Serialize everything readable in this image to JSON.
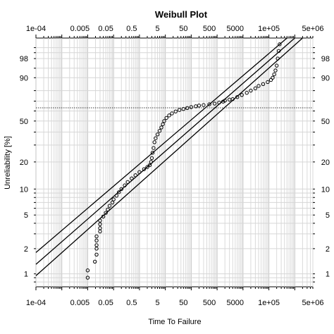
{
  "chart_data": {
    "type": "scatter",
    "title": "Weibull Plot",
    "xlabel": "Time To Failure",
    "ylabel": "Unreliability [%]",
    "x_scale": "log10",
    "y_scale": "weibull",
    "xlim": [
      0.0001,
      5000000
    ],
    "ylim": [
      0.7,
      99.9
    ],
    "grid": true,
    "x_tick_labels": [
      {
        "value": 0.0001,
        "label": "1e-04"
      },
      {
        "value": 0.005,
        "label": "0.005"
      },
      {
        "value": 0.05,
        "label": "0.05"
      },
      {
        "value": 0.5,
        "label": "0.5"
      },
      {
        "value": 5,
        "label": "5"
      },
      {
        "value": 50,
        "label": "50"
      },
      {
        "value": 500,
        "label": "500"
      },
      {
        "value": 5000,
        "label": "5000"
      },
      {
        "value": 100000,
        "label": "1e+05"
      },
      {
        "value": 5000000,
        "label": "5e+06"
      }
    ],
    "y_tick_labels": [
      {
        "value": 1,
        "label": "1"
      },
      {
        "value": 2,
        "label": "2"
      },
      {
        "value": 5,
        "label": "5"
      },
      {
        "value": 10,
        "label": "10"
      },
      {
        "value": 20,
        "label": "20"
      },
      {
        "value": 50,
        "label": "50"
      },
      {
        "value": 90,
        "label": "90"
      },
      {
        "value": 98,
        "label": "98"
      }
    ],
    "reference_line_y": 63.2,
    "fit_lines": [
      {
        "points": [
          [
            0.0001,
            0.95
          ],
          [
            2000000,
            99.9
          ]
        ]
      },
      {
        "points": [
          [
            0.0001,
            1.3
          ],
          [
            1000000,
            99.9
          ]
        ]
      },
      {
        "points": [
          [
            0.0001,
            1.8
          ],
          [
            500000,
            99.9
          ]
        ]
      }
    ],
    "series": [
      {
        "style": "open-circles",
        "points": [
          [
            0.01,
            0.9
          ],
          [
            0.01,
            1.1
          ],
          [
            0.019,
            1.4
          ],
          [
            0.022,
            1.7
          ],
          [
            0.022,
            2.0
          ],
          [
            0.022,
            2.2
          ],
          [
            0.022,
            2.5
          ],
          [
            0.022,
            2.8
          ],
          [
            0.03,
            3.2
          ],
          [
            0.03,
            3.5
          ],
          [
            0.03,
            3.9
          ],
          [
            0.03,
            4.3
          ],
          [
            0.04,
            4.8
          ],
          [
            0.05,
            5.3
          ],
          [
            0.06,
            5.8
          ],
          [
            0.07,
            6.4
          ],
          [
            0.09,
            7.0
          ],
          [
            0.1,
            7.6
          ],
          [
            0.13,
            8.4
          ],
          [
            0.16,
            9.2
          ],
          [
            0.2,
            10.0
          ],
          [
            0.27,
            11.0
          ],
          [
            0.35,
            12.0
          ],
          [
            0.5,
            13.2
          ],
          [
            0.7,
            14.3
          ],
          [
            1.0,
            15.5
          ],
          [
            1.5,
            16.7
          ],
          [
            2.0,
            17.6
          ],
          [
            2.5,
            18.5
          ],
          [
            2.8,
            20.0
          ],
          [
            3.0,
            22.0
          ],
          [
            3.2,
            25.0
          ],
          [
            3.5,
            28.0
          ],
          [
            3.8,
            32.0
          ],
          [
            4.2,
            35.0
          ],
          [
            5.0,
            38.0
          ],
          [
            6.0,
            41.0
          ],
          [
            7.0,
            44.0
          ],
          [
            8.0,
            47.0
          ],
          [
            9.0,
            50.0
          ],
          [
            11.0,
            53.0
          ],
          [
            14.0,
            55.5
          ],
          [
            18.0,
            57.5
          ],
          [
            25.0,
            59.5
          ],
          [
            35.0,
            61.0
          ],
          [
            50.0,
            62.0
          ],
          [
            70.0,
            63.0
          ],
          [
            100.0,
            64.0
          ],
          [
            150.0,
            64.8
          ],
          [
            200.0,
            65.5
          ],
          [
            300.0,
            66.0
          ],
          [
            500.0,
            66.8
          ],
          [
            800.0,
            67.5
          ],
          [
            1200.0,
            68.5
          ],
          [
            1700.0,
            69.5
          ],
          [
            2000.0,
            70.5
          ],
          [
            3000.0,
            71.5
          ],
          [
            4000.0,
            72.0
          ],
          [
            6000.0,
            74.0
          ],
          [
            9000.0,
            76.0
          ],
          [
            14000.0,
            78.0
          ],
          [
            20000.0,
            80.0
          ],
          [
            30000.0,
            82.0
          ],
          [
            40000.0,
            84.0
          ],
          [
            60000.0,
            85.5
          ],
          [
            90000.0,
            87.0
          ],
          [
            120000.0,
            88.5
          ],
          [
            140000.0,
            90.0
          ],
          [
            160000.0,
            92.0
          ],
          [
            180000.0,
            94.0
          ],
          [
            200000.0,
            96.0
          ],
          [
            220000.0,
            98.0
          ],
          [
            240000.0,
            99.2
          ],
          [
            260000.0,
            99.7
          ]
        ]
      }
    ]
  }
}
